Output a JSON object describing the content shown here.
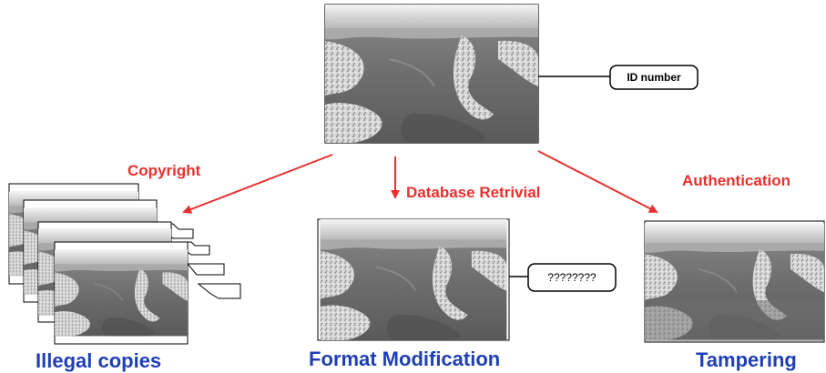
{
  "diagram": {
    "id_tag": "ID number",
    "unknown_tag": "????????",
    "arrows": {
      "copyright": "Copyright",
      "database": "Database Retrivial",
      "authentication": "Authentication"
    },
    "captions": {
      "illegal": "Illegal copies",
      "format": "Format Modification",
      "tampering": "Tampering"
    },
    "colors": {
      "arrow": "#e8302e",
      "caption": "#1f3fb5"
    },
    "image_subject": "aerial-coastline-photo"
  }
}
